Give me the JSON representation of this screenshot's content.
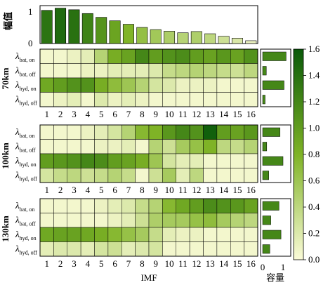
{
  "chart_data": [
    {
      "type": "bar",
      "ylabel": "幅值",
      "categories": [
        "1",
        "2",
        "3",
        "4",
        "5",
        "6",
        "7",
        "8",
        "9",
        "10",
        "11",
        "12",
        "13",
        "14",
        "15",
        "16"
      ],
      "values": [
        1.05,
        1.12,
        1.07,
        0.95,
        0.83,
        0.72,
        0.61,
        0.51,
        0.44,
        0.39,
        0.34,
        0.38,
        0.31,
        0.23,
        0.17,
        0.09
      ],
      "yticks": [
        "0",
        "1"
      ],
      "ylim": [
        0,
        1.2
      ]
    },
    {
      "type": "heatmap",
      "panel_label": "70km",
      "xlabel": "IMF",
      "columns": [
        "1",
        "2",
        "3",
        "4",
        "5",
        "6",
        "7",
        "8",
        "9",
        "10",
        "11",
        "12",
        "13",
        "14",
        "15",
        "16"
      ],
      "rows": [
        {
          "sym": "λ",
          "sub": "bat, on"
        },
        {
          "sym": "λ",
          "sub": "bat, off"
        },
        {
          "sym": "λ",
          "sub": "hyd, on"
        },
        {
          "sym": "λ",
          "sub": "hyd, off"
        }
      ],
      "values": [
        [
          0.05,
          0.05,
          0.1,
          0.15,
          0.45,
          0.85,
          0.95,
          1.2,
          1.0,
          1.1,
          1.15,
          1.0,
          0.95,
          1.05,
          0.95,
          1.1
        ],
        [
          0.05,
          0.05,
          0.05,
          0.1,
          0.1,
          0.15,
          0.15,
          0.15,
          0.2,
          0.35,
          0.4,
          0.45,
          0.4,
          0.35,
          0.3,
          0.4
        ],
        [
          0.9,
          1.0,
          1.1,
          1.1,
          0.85,
          0.7,
          0.6,
          0.45,
          0.25,
          0.2,
          0.1,
          0.1,
          0.1,
          0.05,
          0.05,
          0.05
        ],
        [
          0.05,
          0.1,
          0.15,
          0.05,
          0.2,
          0.1,
          0.15,
          0.1,
          0.05,
          0.05,
          0.05,
          0.05,
          0.05,
          0.05,
          0.05,
          0.05
        ]
      ],
      "capacity": [
        1.15,
        0.18,
        1.05,
        0.12
      ]
    },
    {
      "type": "heatmap",
      "panel_label": "100km",
      "xlabel": "IMF",
      "columns": [
        "1",
        "2",
        "3",
        "4",
        "5",
        "6",
        "7",
        "8",
        "9",
        "10",
        "11",
        "12",
        "13",
        "14",
        "15",
        "16"
      ],
      "rows": [
        {
          "sym": "λ",
          "sub": "bat, on"
        },
        {
          "sym": "λ",
          "sub": "bat, off"
        },
        {
          "sym": "λ",
          "sub": "hyd, on"
        },
        {
          "sym": "λ",
          "sub": "hyd, off"
        }
      ],
      "values": [
        [
          0.05,
          0.05,
          0.05,
          0.1,
          0.15,
          0.25,
          0.45,
          0.75,
          0.8,
          1.05,
          1.2,
          1.1,
          1.55,
          1.0,
          0.95,
          1.05
        ],
        [
          0.05,
          0.05,
          0.05,
          0.05,
          0.1,
          0.1,
          0.15,
          0.05,
          0.45,
          0.3,
          0.55,
          0.65,
          0.8,
          0.4,
          0.35,
          0.45
        ],
        [
          1.0,
          1.05,
          1.1,
          1.2,
          1.15,
          1.0,
          0.95,
          0.85,
          0.6,
          0.25,
          0.15,
          0.15,
          0.05,
          0.05,
          0.05,
          0.05
        ],
        [
          0.25,
          0.35,
          0.4,
          0.3,
          0.35,
          0.45,
          0.35,
          0.05,
          0.3,
          0.55,
          0.15,
          0.4,
          0.05,
          0.05,
          0.05,
          0.05
        ]
      ],
      "capacity": [
        0.85,
        0.2,
        1.0,
        0.3
      ]
    },
    {
      "type": "heatmap",
      "panel_label": "130km",
      "xlabel": "IMF",
      "columns": [
        "1",
        "2",
        "3",
        "4",
        "5",
        "6",
        "7",
        "8",
        "9",
        "10",
        "11",
        "12",
        "13",
        "14",
        "15",
        "16"
      ],
      "rows": [
        {
          "sym": "λ",
          "sub": "bat, on"
        },
        {
          "sym": "λ",
          "sub": "bat, off"
        },
        {
          "sym": "λ",
          "sub": "hyd, on"
        },
        {
          "sym": "λ",
          "sub": "hyd, off"
        }
      ],
      "values": [
        [
          0.05,
          0.05,
          0.05,
          0.05,
          0.1,
          0.15,
          0.2,
          0.35,
          0.45,
          0.75,
          0.9,
          1.0,
          1.15,
          1.1,
          1.05,
          0.95
        ],
        [
          0.05,
          0.05,
          0.05,
          0.05,
          0.05,
          0.1,
          0.15,
          0.3,
          0.5,
          0.55,
          0.55,
          0.65,
          0.7,
          0.55,
          0.45,
          0.4
        ],
        [
          0.9,
          0.95,
          0.95,
          0.9,
          0.85,
          0.75,
          0.65,
          0.55,
          0.35,
          0.15,
          0.1,
          0.1,
          0.05,
          0.05,
          0.05,
          0.05
        ],
        [
          0.15,
          0.2,
          0.2,
          0.15,
          0.25,
          0.3,
          0.15,
          0.2,
          0.25,
          0.05,
          0.05,
          0.05,
          0.05,
          0.05,
          0.05,
          0.05
        ]
      ],
      "capacity": [
        0.8,
        0.4,
        0.9,
        0.35
      ]
    }
  ],
  "capacity_axis": {
    "label": "容量",
    "ticks": [
      "0",
      "1"
    ]
  },
  "colorbar": {
    "min": 0,
    "max": 1.6,
    "ticks": [
      "0.0",
      "0.2",
      "0.4",
      "0.6",
      "0.8",
      "1.0",
      "1.2",
      "1.4",
      "1.6"
    ],
    "color_low": "#fbfbd8",
    "color_mid": "#7fb326",
    "color_high": "#0a5a0a"
  }
}
